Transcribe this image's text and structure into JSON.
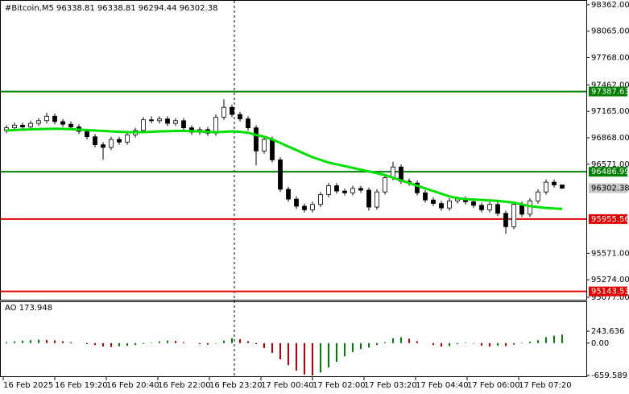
{
  "chart_data": {
    "type": "candlestick",
    "title": "#Bitcoin,M5  96338.81 96338.81 96294.44 96302.38",
    "ylim": [
      95050,
      98415
    ],
    "yticks": [
      {
        "value": 98362,
        "label": "98362.00"
      },
      {
        "value": 98065,
        "label": "98065.00"
      },
      {
        "value": 97768,
        "label": "97768.00"
      },
      {
        "value": 97462,
        "label": "97462.00"
      },
      {
        "value": 97165,
        "label": "97165.00"
      },
      {
        "value": 96868,
        "label": "96868.00"
      },
      {
        "value": 96571,
        "label": "96571.00"
      },
      {
        "value": 95571,
        "label": "95571.00"
      },
      {
        "value": 95274,
        "label": "95274.00"
      },
      {
        "value": 95077,
        "label": "95077.00"
      }
    ],
    "xticks": [
      "16 Feb 2025",
      "16 Feb 19:20",
      "16 Feb 20:40",
      "16 Feb 22:00",
      "16 Feb 23:20",
      "17 Feb 00:40",
      "17 Feb 02:00",
      "17 Feb 03:20",
      "17 Feb 04:40",
      "17 Feb 06:00",
      "17 Feb 07:20"
    ],
    "open": [
      96950,
      96980,
      97010,
      96990,
      97030,
      97060,
      97110,
      97050,
      97020,
      96990,
      96940,
      96880,
      96790,
      96760,
      96850,
      96820,
      96900,
      96950,
      97070,
      97060,
      97080,
      97030,
      97060,
      96980,
      96930,
      96960,
      96920,
      97100,
      97210,
      97130,
      97080,
      96980,
      96720,
      96850,
      96620,
      96290,
      96180,
      96100,
      96060,
      96120,
      96230,
      96330,
      96270,
      96250,
      96300,
      96280,
      96090,
      96260,
      96420,
      96540,
      96380,
      96360,
      96250,
      96170,
      96130,
      96080,
      96160,
      96180,
      96150,
      96110,
      96060,
      96120,
      96020,
      95870,
      96120,
      96010,
      96160,
      96260,
      96370,
      96338.81
    ],
    "high": [
      97010,
      97040,
      97040,
      97060,
      97090,
      97150,
      97140,
      97080,
      97050,
      97020,
      96970,
      96910,
      96820,
      96880,
      96880,
      96930,
      96980,
      97100,
      97110,
      97110,
      97110,
      97090,
      97090,
      97010,
      96990,
      96990,
      97130,
      97300,
      97240,
      97160,
      97110,
      97010,
      96880,
      96880,
      96650,
      96320,
      96210,
      96130,
      96150,
      96260,
      96360,
      96360,
      96300,
      96330,
      96330,
      96310,
      96290,
      96450,
      96600,
      96570,
      96410,
      96390,
      96280,
      96200,
      96160,
      96190,
      96210,
      96210,
      96180,
      96140,
      96150,
      96150,
      96050,
      96150,
      96150,
      96190,
      96290,
      96400,
      96400,
      96338.81
    ],
    "low": [
      96920,
      96950,
      96960,
      96960,
      97000,
      97030,
      97020,
      96990,
      96960,
      96910,
      96850,
      96760,
      96620,
      96730,
      96790,
      96790,
      96870,
      96920,
      97030,
      97030,
      97000,
      97000,
      96950,
      96900,
      96900,
      96890,
      96890,
      97070,
      97100,
      97050,
      96950,
      96560,
      96690,
      96590,
      96260,
      96150,
      96070,
      96030,
      96030,
      96090,
      96200,
      96240,
      96220,
      96220,
      96250,
      96050,
      96060,
      96230,
      96390,
      96350,
      96330,
      96220,
      96140,
      96100,
      96050,
      96050,
      96130,
      96120,
      96080,
      96030,
      96030,
      95990,
      95790,
      95840,
      95980,
      95980,
      96130,
      96230,
      96310,
      96294.44
    ],
    "close": [
      96980,
      97010,
      96990,
      97030,
      97060,
      97110,
      97050,
      97020,
      96990,
      96940,
      96880,
      96790,
      96760,
      96850,
      96820,
      96900,
      96950,
      97070,
      97060,
      97080,
      97030,
      97060,
      96980,
      96930,
      96960,
      96920,
      97100,
      97210,
      97130,
      97080,
      96980,
      96720,
      96850,
      96620,
      96290,
      96180,
      96100,
      96060,
      96120,
      96230,
      96330,
      96270,
      96250,
      96300,
      96280,
      96090,
      96260,
      96420,
      96540,
      96380,
      96360,
      96250,
      96170,
      96130,
      96080,
      96160,
      96180,
      96150,
      96110,
      96060,
      96120,
      96020,
      95870,
      96120,
      96010,
      96160,
      96260,
      96370,
      96338.81,
      96302.38
    ],
    "ma": {
      "color": "#00e000",
      "values": [
        96950,
        96955,
        96960,
        96962,
        96965,
        96968,
        96970,
        96968,
        96965,
        96960,
        96955,
        96950,
        96945,
        96940,
        96935,
        96932,
        96930,
        96932,
        96935,
        96940,
        96942,
        96945,
        96945,
        96942,
        96940,
        96935,
        96930,
        96935,
        96940,
        96935,
        96925,
        96900,
        96880,
        96850,
        96810,
        96770,
        96730,
        96690,
        96650,
        96620,
        96590,
        96570,
        96550,
        96530,
        96510,
        96490,
        96470,
        96450,
        96420,
        96390,
        96360,
        96330,
        96300,
        96270,
        96240,
        96210,
        96190,
        96180,
        96175,
        96170,
        96165,
        96160,
        96150,
        96140,
        96120,
        96100,
        96090,
        96080,
        96075,
        96070
      ]
    },
    "levels": [
      {
        "value": 97387.63,
        "color": "#008000"
      },
      {
        "value": 96486.99,
        "color": "#008000"
      },
      {
        "value": 95955.56,
        "color": "#e00000"
      },
      {
        "value": 95143.53,
        "color": "#e00000"
      }
    ],
    "indicator": {
      "title": "AO 173.948",
      "ylim": [
        -659.589,
        243.636
      ],
      "yticks": [
        {
          "value": 243.636,
          "label": "243.636"
        },
        {
          "value": 0,
          "label": "0.00"
        },
        {
          "value": -659.589,
          "label": "-659.589"
        }
      ],
      "up_color": "#008000",
      "down_color": "#c00000",
      "values": [
        20,
        35,
        50,
        60,
        70,
        65,
        55,
        40,
        20,
        0,
        -20,
        -40,
        -70,
        -80,
        -65,
        -55,
        -40,
        -15,
        10,
        35,
        50,
        45,
        20,
        0,
        -20,
        -30,
        -10,
        50,
        100,
        80,
        40,
        -20,
        -100,
        -200,
        -330,
        -450,
        -560,
        -640,
        -659.589,
        -600,
        -500,
        -380,
        -270,
        -180,
        -120,
        -90,
        -40,
        20,
        100,
        120,
        90,
        40,
        0,
        -40,
        -70,
        -60,
        -20,
        10,
        -10,
        -50,
        -70,
        -50,
        -60,
        -30,
        10,
        30,
        60,
        120,
        150,
        173.948
      ]
    }
  }
}
